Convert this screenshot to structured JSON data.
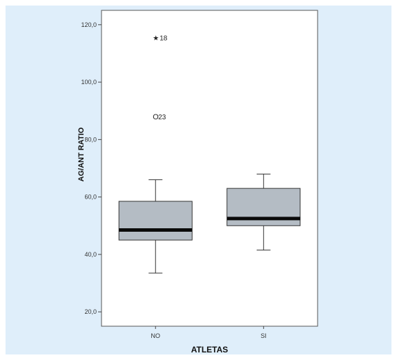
{
  "chart_data": {
    "type": "boxplot",
    "xlabel": "ATLETAS",
    "ylabel": "AG/ANT RATIO",
    "ylim": [
      15,
      125
    ],
    "yticks": [
      20,
      40,
      60,
      80,
      100,
      120
    ],
    "ytick_labels": [
      "20,0",
      "40,0",
      "60,0",
      "80,0",
      "100,0",
      "120,0"
    ],
    "categories": [
      "NO",
      "SI"
    ],
    "boxes": [
      {
        "category": "NO",
        "whisker_low": 33.5,
        "q1": 45.0,
        "median": 48.5,
        "q3": 58.5,
        "whisker_high": 66.0,
        "outliers": [
          {
            "value": 88.0,
            "label": "23",
            "marker": "circle"
          },
          {
            "value": 115.5,
            "label": "18",
            "marker": "star"
          }
        ]
      },
      {
        "category": "SI",
        "whisker_low": 41.5,
        "q1": 50.0,
        "median": 52.5,
        "q3": 63.0,
        "whisker_high": 68.0,
        "outliers": []
      }
    ],
    "grid": false,
    "colors": {
      "background": "#dfeefa",
      "plot_area": "#ffffff",
      "box_fill": "#b4bcc4",
      "median": "#0a0a0a",
      "line": "#333333"
    }
  }
}
